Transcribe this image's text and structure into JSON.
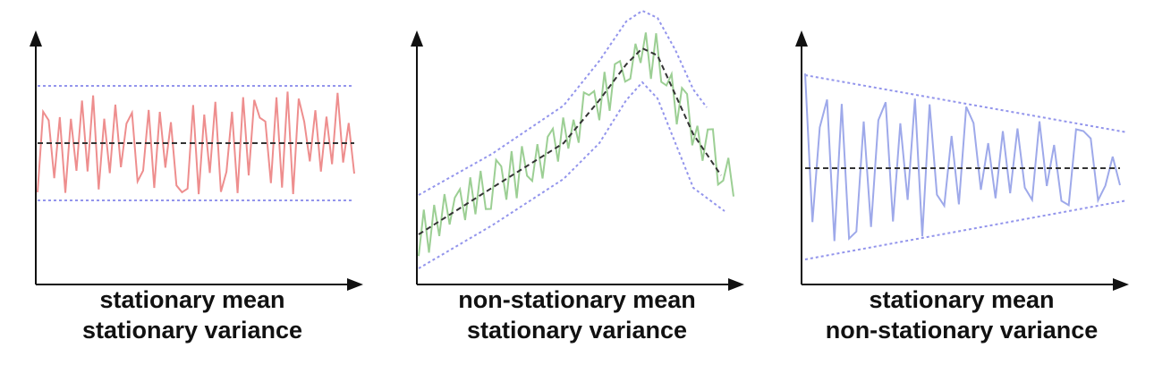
{
  "colors": {
    "axis": "#111111",
    "bound": "#6f72e6",
    "mean": "#333333",
    "series_panel_1": "#ee8e8e",
    "series_panel_2": "#9ccf94",
    "series_panel_3": "#9ea9ea"
  },
  "panels": [
    {
      "caption_line1": "stationary mean",
      "caption_line2": "stationary variance"
    },
    {
      "caption_line1": "non-stationary mean",
      "caption_line2": "stationary variance"
    },
    {
      "caption_line1": "stationary mean",
      "caption_line2": "non-stationary variance"
    }
  ]
}
